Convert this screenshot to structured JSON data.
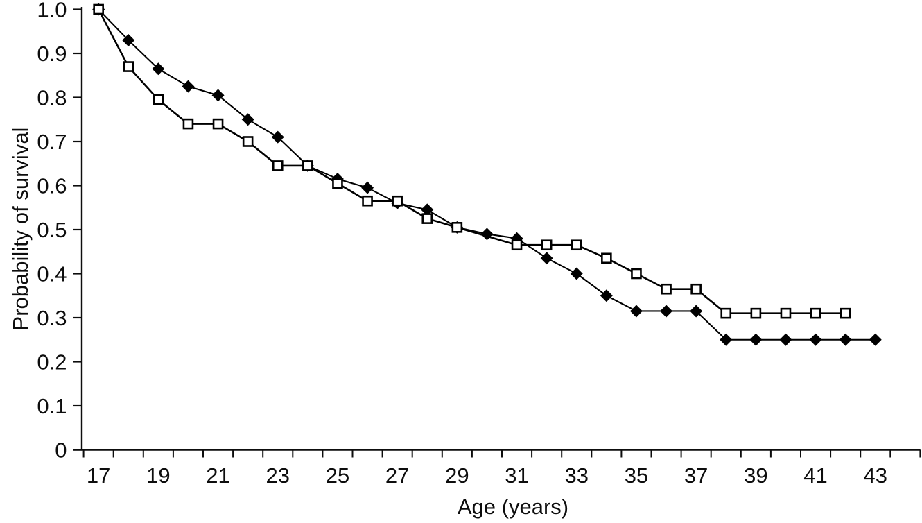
{
  "chart_data": {
    "type": "line",
    "title": "",
    "xlabel": "Age (years)",
    "ylabel": "Probability of survival",
    "xlim": [
      17,
      44
    ],
    "ylim": [
      0,
      1.0
    ],
    "grid": false,
    "legend": "none",
    "x_tick_labels": [
      17,
      19,
      21,
      23,
      25,
      27,
      29,
      31,
      33,
      35,
      37,
      39,
      41,
      43
    ],
    "y_ticks": [
      1.0,
      0.9,
      0.8,
      0.7,
      0.6,
      0.5,
      0.4,
      0.3,
      0.2,
      0.1,
      0
    ],
    "y_tick_labels": [
      "1.0",
      "0.9",
      "0.8",
      "0.7",
      "0.6",
      "0.5",
      "0.4",
      "0.3",
      "0.2",
      "0.1",
      "0"
    ],
    "axis_color": "#0d0d0d",
    "series": [
      {
        "name": "Filled diamond series",
        "marker": "filled-diamond",
        "color": "#000000",
        "x": [
          17,
          18,
          19,
          20,
          21,
          22,
          23,
          24,
          25,
          26,
          27,
          28,
          29,
          30,
          31,
          32,
          33,
          34,
          35,
          36,
          37,
          38,
          39,
          40,
          41,
          42,
          43
        ],
        "values": [
          1.0,
          0.93,
          0.865,
          0.825,
          0.805,
          0.75,
          0.71,
          0.645,
          0.615,
          0.595,
          0.56,
          0.545,
          0.505,
          0.49,
          0.48,
          0.435,
          0.4,
          0.35,
          0.315,
          0.315,
          0.315,
          0.25,
          0.25,
          0.25,
          0.25,
          0.25,
          0.25
        ]
      },
      {
        "name": "Open square series",
        "marker": "open-square",
        "color": "#000000",
        "x": [
          17,
          18,
          19,
          20,
          21,
          22,
          23,
          24,
          25,
          26,
          27,
          28,
          29,
          31,
          32,
          33,
          34,
          35,
          36,
          37,
          38,
          39,
          40,
          41,
          42
        ],
        "values": [
          1.0,
          0.87,
          0.795,
          0.74,
          0.74,
          0.7,
          0.645,
          0.645,
          0.605,
          0.565,
          0.565,
          0.525,
          0.505,
          0.465,
          0.465,
          0.465,
          0.435,
          0.4,
          0.365,
          0.365,
          0.31,
          0.31,
          0.31,
          0.31,
          0.31
        ]
      }
    ]
  }
}
